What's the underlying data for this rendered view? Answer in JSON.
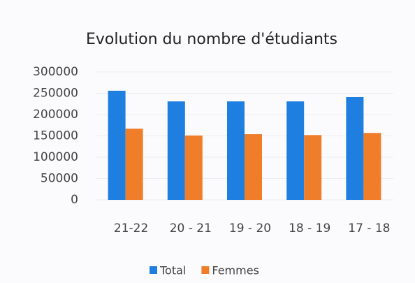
{
  "chart_data": {
    "type": "bar",
    "title": "Evolution du nombre d'étudiants",
    "categories": [
      "21-22",
      "20 - 21",
      "19 - 20",
      "18 - 19",
      "17 - 18"
    ],
    "series": [
      {
        "name": "Total",
        "color": "#1f7fe0",
        "values": [
          256000,
          231000,
          231000,
          231000,
          241000
        ]
      },
      {
        "name": "Femmes",
        "color": "#f07d2a",
        "values": [
          167000,
          151000,
          154000,
          152000,
          157000
        ]
      }
    ],
    "ylim": [
      0,
      300000
    ],
    "yticks": [
      0,
      50000,
      100000,
      150000,
      200000,
      250000,
      300000
    ],
    "grid": true,
    "legend": "bottom"
  }
}
